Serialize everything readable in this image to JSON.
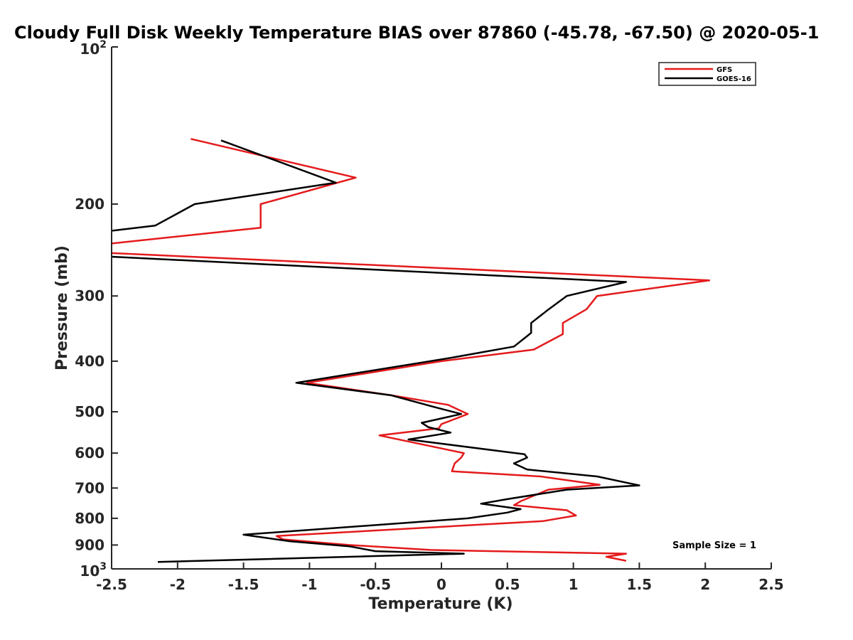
{
  "chart_data": {
    "type": "line",
    "title": "Cloudy Full Disk Weekly Temperature BIAS over 87860 (-45.78, -67.50) @ 2020-05-1",
    "xlabel": "Temperature (K)",
    "ylabel": "Pressure (mb)",
    "xlim": [
      -2.5,
      2.5
    ],
    "ylim": [
      100,
      1000
    ],
    "y_scale": "log",
    "y_reversed": true,
    "x_ticks": [
      -2.5,
      -2,
      -1.5,
      -1,
      -0.5,
      0,
      0.5,
      1,
      1.5,
      2,
      2.5
    ],
    "x_tick_labels": [
      "-2.5",
      "-2",
      "-1.5",
      "-1",
      "-0.5",
      "0",
      "0.5",
      "1",
      "1.5",
      "2",
      "2.5"
    ],
    "y_ticks": [
      200,
      300,
      400,
      500,
      600,
      700,
      800,
      900
    ],
    "y_tick_labels": [
      "200",
      "300",
      "400",
      "500",
      "600",
      "700",
      "800",
      "900"
    ],
    "y_tick_100_base": "10",
    "y_tick_100_exp": "2",
    "y_tick_1000_base": "10",
    "y_tick_1000_exp": "3",
    "legend_position": "top-right",
    "grid": false,
    "annotation": "Sample Size = 1",
    "series": [
      {
        "name": "GFS",
        "color": "#e41a1c",
        "points": [
          [
            -1.9,
            150
          ],
          [
            -0.65,
            178
          ],
          [
            -1.37,
            200
          ],
          [
            -1.37,
            222
          ],
          [
            -2.5,
            238
          ],
          [
            -2.55,
            248
          ],
          [
            2.03,
            280
          ],
          [
            1.18,
            300
          ],
          [
            1.1,
            318
          ],
          [
            0.92,
            338
          ],
          [
            0.92,
            355
          ],
          [
            0.7,
            380
          ],
          [
            0.0,
            400
          ],
          [
            -1.02,
            440
          ],
          [
            -0.38,
            465
          ],
          [
            0.05,
            485
          ],
          [
            0.2,
            505
          ],
          [
            0.0,
            528
          ],
          [
            -0.02,
            538
          ],
          [
            -0.47,
            555
          ],
          [
            0.17,
            600
          ],
          [
            0.15,
            612
          ],
          [
            0.1,
            628
          ],
          [
            0.08,
            650
          ],
          [
            0.75,
            665
          ],
          [
            1.2,
            690
          ],
          [
            0.81,
            705
          ],
          [
            0.6,
            742
          ],
          [
            0.55,
            755
          ],
          [
            0.95,
            772
          ],
          [
            1.02,
            790
          ],
          [
            0.77,
            810
          ],
          [
            -1.25,
            865
          ],
          [
            -1.2,
            878
          ],
          [
            -0.7,
            900
          ],
          [
            -0.08,
            920
          ],
          [
            1.4,
            935
          ],
          [
            1.25,
            948
          ],
          [
            1.4,
            965
          ]
        ]
      },
      {
        "name": "GOES-16",
        "color": "#000000",
        "points": [
          [
            -1.67,
            151
          ],
          [
            -0.8,
            182
          ],
          [
            -1.87,
            200
          ],
          [
            -2.17,
            220
          ],
          [
            -2.5,
            225
          ],
          [
            -2.55,
            252
          ],
          [
            1.4,
            282
          ],
          [
            0.95,
            300
          ],
          [
            0.8,
            320
          ],
          [
            0.68,
            338
          ],
          [
            0.68,
            353
          ],
          [
            0.55,
            375
          ],
          [
            0.05,
            395
          ],
          [
            -1.1,
            440
          ],
          [
            -0.38,
            465
          ],
          [
            -0.05,
            490
          ],
          [
            0.15,
            505
          ],
          [
            -0.15,
            525
          ],
          [
            -0.1,
            535
          ],
          [
            0.07,
            548
          ],
          [
            -0.25,
            565
          ],
          [
            0.63,
            603
          ],
          [
            0.65,
            612
          ],
          [
            0.55,
            628
          ],
          [
            0.65,
            645
          ],
          [
            1.18,
            665
          ],
          [
            1.5,
            692
          ],
          [
            0.95,
            705
          ],
          [
            0.5,
            735
          ],
          [
            0.3,
            750
          ],
          [
            0.6,
            768
          ],
          [
            0.5,
            780
          ],
          [
            0.2,
            800
          ],
          [
            -1.5,
            860
          ],
          [
            -1.15,
            885
          ],
          [
            -0.7,
            905
          ],
          [
            -0.5,
            925
          ],
          [
            0.17,
            935
          ],
          [
            -2.15,
            970
          ]
        ]
      }
    ]
  }
}
